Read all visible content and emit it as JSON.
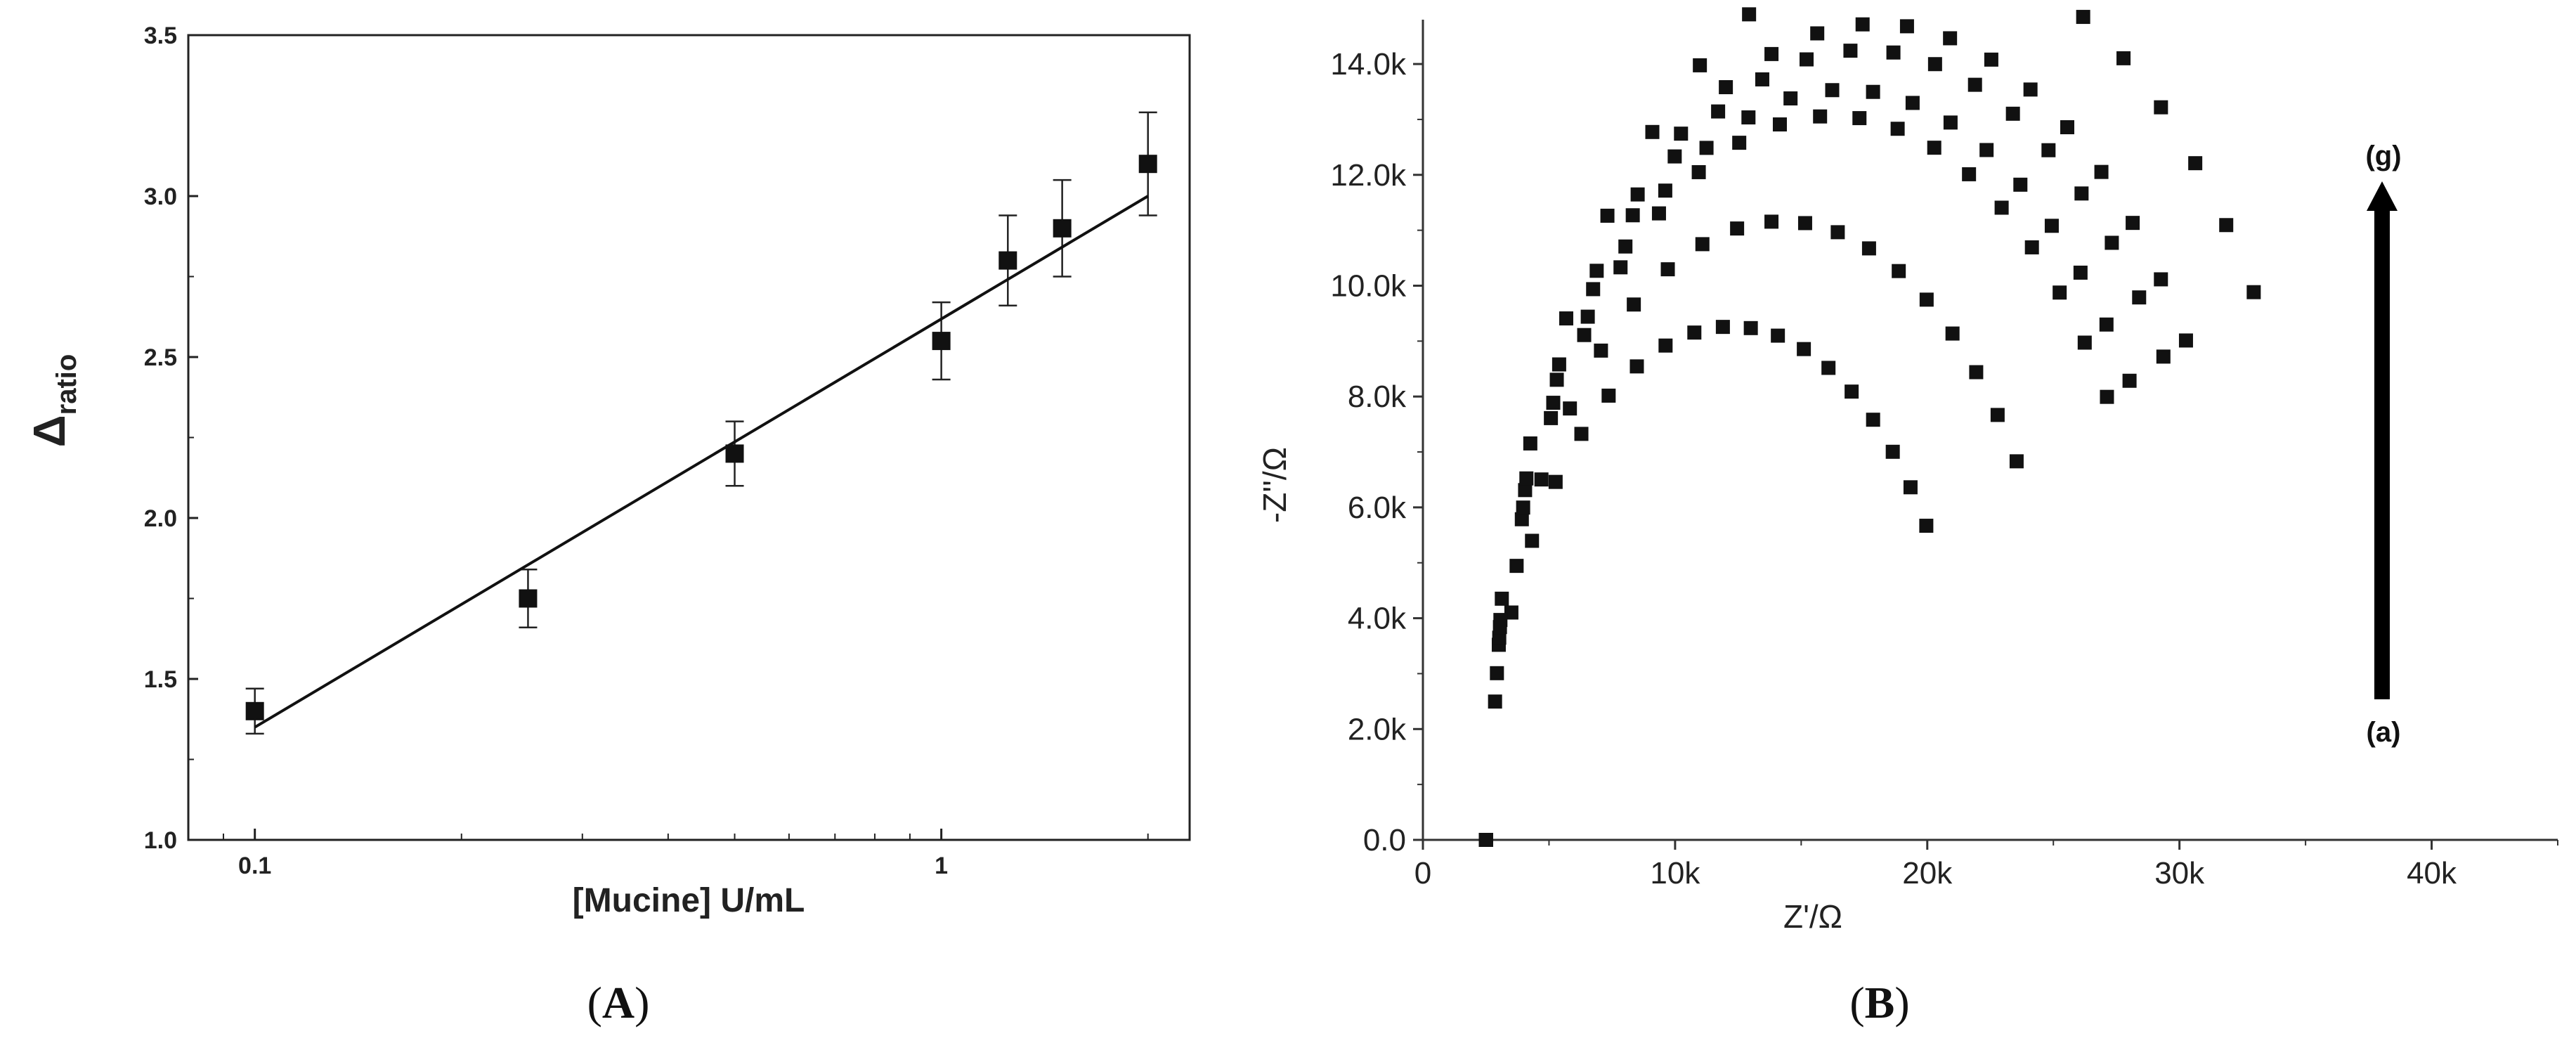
{
  "panels": {
    "a_label": "A",
    "b_label": "B"
  },
  "chart_data": [
    {
      "type": "scatter",
      "panel": "A",
      "title": "",
      "xlabel": "[Mucine] U/mL",
      "ylabel_main": "Δ",
      "ylabel_sub": "ratio",
      "x_scale": "log",
      "xlim": [
        0.08,
        2.3
      ],
      "ylim": [
        1.0,
        3.5
      ],
      "x_ticks": [
        {
          "value": 0.1,
          "label": "0.1"
        },
        {
          "value": 1,
          "label": "1"
        }
      ],
      "y_ticks": [
        {
          "value": 1.0,
          "label": "1.0"
        },
        {
          "value": 1.5,
          "label": "1.5"
        },
        {
          "value": 2.0,
          "label": "2.0"
        },
        {
          "value": 2.5,
          "label": "2.5"
        },
        {
          "value": 3.0,
          "label": "3.0"
        },
        {
          "value": 3.5,
          "label": "3.5"
        }
      ],
      "points": [
        {
          "x": 0.1,
          "y": 1.4,
          "err": 0.07
        },
        {
          "x": 0.25,
          "y": 1.75,
          "err": 0.09
        },
        {
          "x": 0.5,
          "y": 2.2,
          "err": 0.1
        },
        {
          "x": 1.0,
          "y": 2.55,
          "err": 0.12
        },
        {
          "x": 1.25,
          "y": 2.8,
          "err": 0.14
        },
        {
          "x": 1.5,
          "y": 2.9,
          "err": 0.15
        },
        {
          "x": 2.0,
          "y": 3.1,
          "err": 0.16
        }
      ],
      "fit_line": {
        "x": [
          0.1,
          2.0
        ],
        "y": [
          1.35,
          3.0
        ]
      }
    },
    {
      "type": "scatter",
      "panel": "B",
      "title": "",
      "xlabel": "Z'/Ω",
      "ylabel": "-Z''/Ω",
      "xlim": [
        0,
        45000
      ],
      "ylim": [
        0,
        14800
      ],
      "x_ticks": [
        {
          "value": 0,
          "label": "0"
        },
        {
          "value": 10000,
          "label": "10k"
        },
        {
          "value": 20000,
          "label": "20k"
        },
        {
          "value": 30000,
          "label": "30k"
        },
        {
          "value": 40000,
          "label": "40k"
        }
      ],
      "y_ticks": [
        {
          "value": 0,
          "label": "0.0"
        },
        {
          "value": 2000,
          "label": "2.0k"
        },
        {
          "value": 4000,
          "label": "4.0k"
        },
        {
          "value": 6000,
          "label": "6.0k"
        },
        {
          "value": 8000,
          "label": "8.0k"
        },
        {
          "value": 10000,
          "label": "10.0k"
        },
        {
          "value": 12000,
          "label": "12.0k"
        },
        {
          "value": 14000,
          "label": "14.0k"
        }
      ],
      "annotation_top": "(g)",
      "annotation_bottom": "(a)",
      "series": [
        {
          "rs": 2500,
          "rct": 19500
        },
        {
          "rs": 2500,
          "rct": 23500
        },
        {
          "rs": 2500,
          "rct": 27500
        },
        {
          "rs": 2500,
          "rct": 28500
        },
        {
          "rs": 2500,
          "rct": 30000
        },
        {
          "rs": 2500,
          "rct": 31000
        },
        {
          "rs": 2500,
          "rct": 34000
        }
      ]
    }
  ]
}
